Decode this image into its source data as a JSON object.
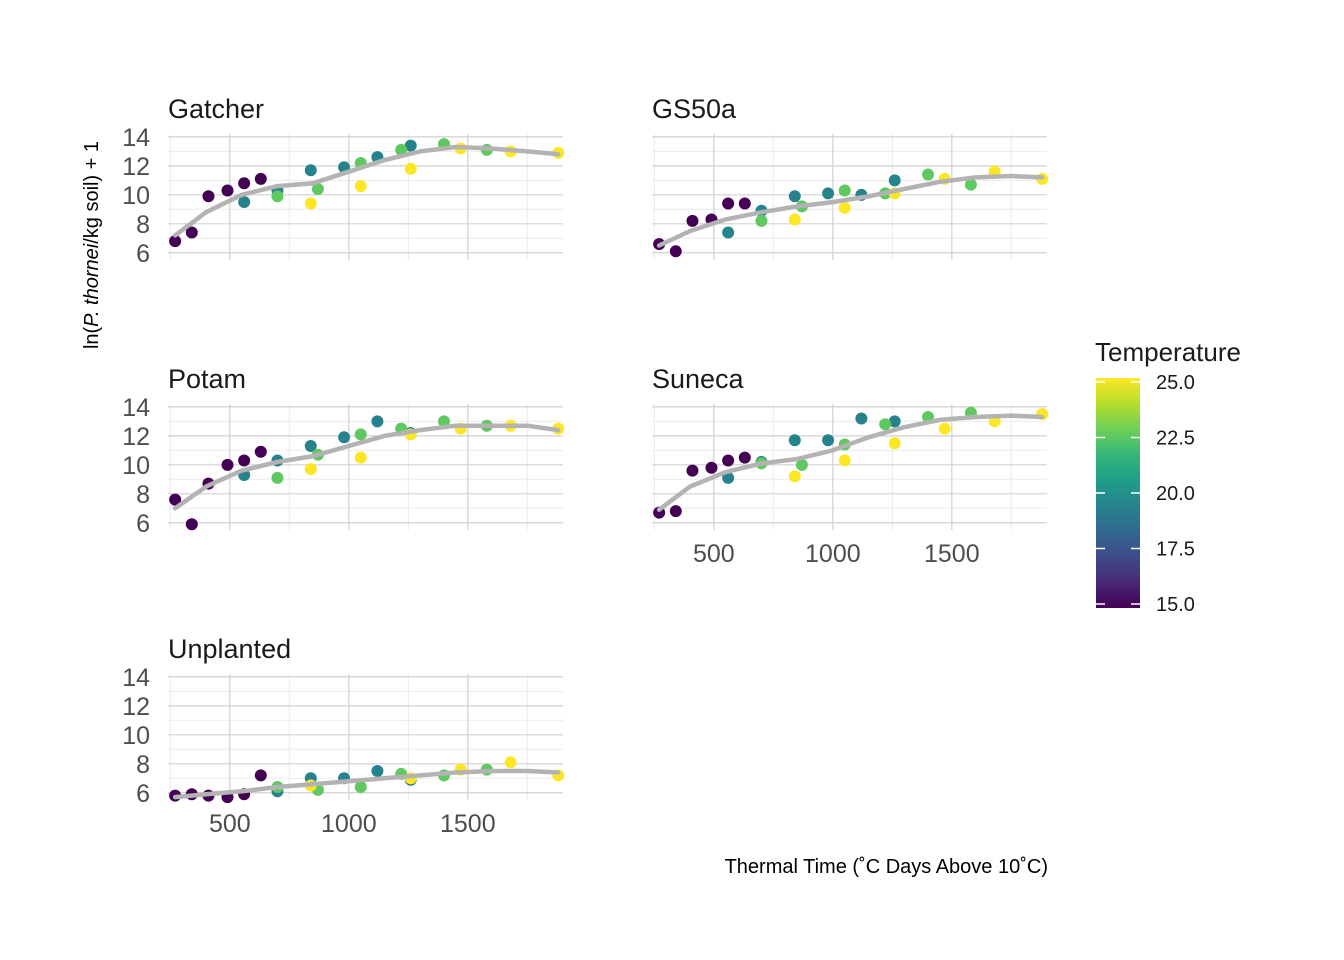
{
  "chart_data": {
    "type": "scatter",
    "xlabel": "Thermal Time (˚C Days Above 10˚C)",
    "ylabel_parts": [
      "ln(",
      "P. thornei",
      "/kg soil) + 1"
    ],
    "xlim": [
      240,
      1900
    ],
    "ylim": [
      5.5,
      14.2
    ],
    "x_ticks": [
      500,
      1000,
      1500
    ],
    "y_ticks": [
      6,
      8,
      10,
      12,
      14
    ],
    "grid": true,
    "legend": {
      "title": "Temperature",
      "placement": "right",
      "min": 15.0,
      "max": 25.0,
      "ticks": [
        "15.0",
        "17.5",
        "20.0",
        "22.5",
        "25.0"
      ],
      "colors": [
        "#440154",
        "#482878",
        "#3e4a89",
        "#31688e",
        "#26828e",
        "#1f9e89",
        "#35b779",
        "#6ece58",
        "#b5de2b",
        "#fde725"
      ]
    },
    "smooth_color": "#b3b3b3",
    "panels": [
      {
        "name": "Gatcher",
        "points": [
          [
            270,
            6.8,
            15
          ],
          [
            340,
            7.4,
            15
          ],
          [
            410,
            9.9,
            15
          ],
          [
            490,
            10.3,
            15
          ],
          [
            560,
            10.8,
            15
          ],
          [
            630,
            11.1,
            15
          ],
          [
            560,
            9.5,
            19.5
          ],
          [
            700,
            10.3,
            19.5
          ],
          [
            840,
            11.7,
            19.5
          ],
          [
            980,
            11.9,
            19.5
          ],
          [
            1120,
            12.6,
            19.5
          ],
          [
            1260,
            13.4,
            19.5
          ],
          [
            700,
            9.9,
            22.5
          ],
          [
            870,
            10.4,
            22.5
          ],
          [
            1050,
            12.2,
            22.5
          ],
          [
            1220,
            13.1,
            22.5
          ],
          [
            1400,
            13.5,
            22.5
          ],
          [
            1580,
            13.1,
            22.5
          ],
          [
            840,
            9.4,
            25
          ],
          [
            1050,
            10.6,
            25
          ],
          [
            1260,
            11.8,
            25
          ],
          [
            1470,
            13.2,
            25
          ],
          [
            1680,
            13.0,
            25
          ],
          [
            1880,
            12.9,
            25
          ]
        ],
        "smooth": [
          [
            270,
            7.2
          ],
          [
            400,
            8.8
          ],
          [
            550,
            10.0
          ],
          [
            700,
            10.6
          ],
          [
            850,
            10.8
          ],
          [
            1000,
            11.6
          ],
          [
            1150,
            12.4
          ],
          [
            1300,
            13.0
          ],
          [
            1450,
            13.3
          ],
          [
            1600,
            13.2
          ],
          [
            1750,
            13.0
          ],
          [
            1880,
            12.8
          ]
        ]
      },
      {
        "name": "GS50a",
        "points": [
          [
            270,
            6.6,
            15
          ],
          [
            340,
            6.1,
            15
          ],
          [
            410,
            8.2,
            15
          ],
          [
            490,
            8.3,
            15
          ],
          [
            560,
            9.4,
            15
          ],
          [
            630,
            9.4,
            15
          ],
          [
            560,
            7.4,
            19.5
          ],
          [
            700,
            8.9,
            19.5
          ],
          [
            840,
            9.9,
            19.5
          ],
          [
            980,
            10.1,
            19.5
          ],
          [
            1120,
            10.0,
            19.5
          ],
          [
            1260,
            11.0,
            19.5
          ],
          [
            700,
            8.2,
            22.5
          ],
          [
            870,
            9.2,
            22.5
          ],
          [
            1050,
            10.3,
            22.5
          ],
          [
            1220,
            10.1,
            22.5
          ],
          [
            1400,
            11.4,
            22.5
          ],
          [
            1580,
            10.7,
            22.5
          ],
          [
            840,
            8.3,
            25
          ],
          [
            1050,
            9.1,
            25
          ],
          [
            1260,
            10.1,
            25
          ],
          [
            1470,
            11.1,
            25
          ],
          [
            1680,
            11.6,
            25
          ],
          [
            1880,
            11.1,
            25
          ]
        ],
        "smooth": [
          [
            270,
            6.5
          ],
          [
            400,
            7.5
          ],
          [
            550,
            8.3
          ],
          [
            700,
            8.8
          ],
          [
            850,
            9.2
          ],
          [
            1000,
            9.5
          ],
          [
            1150,
            9.9
          ],
          [
            1300,
            10.4
          ],
          [
            1450,
            10.9
          ],
          [
            1600,
            11.2
          ],
          [
            1750,
            11.3
          ],
          [
            1880,
            11.2
          ]
        ]
      },
      {
        "name": "Potam",
        "points": [
          [
            270,
            7.6,
            15
          ],
          [
            340,
            5.9,
            15
          ],
          [
            410,
            8.7,
            15
          ],
          [
            490,
            10.0,
            15
          ],
          [
            560,
            10.3,
            15
          ],
          [
            630,
            10.9,
            15
          ],
          [
            560,
            9.3,
            19.5
          ],
          [
            700,
            10.3,
            19.5
          ],
          [
            840,
            11.3,
            19.5
          ],
          [
            980,
            11.9,
            19.5
          ],
          [
            1120,
            13.0,
            19.5
          ],
          [
            1260,
            12.2,
            19.5
          ],
          [
            700,
            9.1,
            22.5
          ],
          [
            870,
            10.7,
            22.5
          ],
          [
            1050,
            12.1,
            22.5
          ],
          [
            1220,
            12.5,
            22.5
          ],
          [
            1400,
            13.0,
            22.5
          ],
          [
            1580,
            12.7,
            22.5
          ],
          [
            840,
            9.7,
            25
          ],
          [
            1050,
            10.5,
            25
          ],
          [
            1260,
            12.1,
            25
          ],
          [
            1470,
            12.5,
            25
          ],
          [
            1680,
            12.7,
            25
          ],
          [
            1880,
            12.5,
            25
          ]
        ],
        "smooth": [
          [
            270,
            7.0
          ],
          [
            400,
            8.5
          ],
          [
            550,
            9.6
          ],
          [
            700,
            10.2
          ],
          [
            850,
            10.6
          ],
          [
            1000,
            11.3
          ],
          [
            1150,
            12.0
          ],
          [
            1300,
            12.4
          ],
          [
            1450,
            12.7
          ],
          [
            1600,
            12.7
          ],
          [
            1750,
            12.7
          ],
          [
            1880,
            12.4
          ]
        ]
      },
      {
        "name": "Suneca",
        "points": [
          [
            270,
            6.7,
            15
          ],
          [
            340,
            6.8,
            15
          ],
          [
            410,
            9.6,
            15
          ],
          [
            490,
            9.8,
            15
          ],
          [
            560,
            10.3,
            15
          ],
          [
            630,
            10.5,
            15
          ],
          [
            560,
            9.1,
            19.5
          ],
          [
            700,
            10.2,
            19.5
          ],
          [
            840,
            11.7,
            19.5
          ],
          [
            980,
            11.7,
            19.5
          ],
          [
            1120,
            13.2,
            19.5
          ],
          [
            1260,
            13.0,
            19.5
          ],
          [
            700,
            10.1,
            22.5
          ],
          [
            870,
            10.0,
            22.5
          ],
          [
            1050,
            11.4,
            22.5
          ],
          [
            1220,
            12.8,
            22.5
          ],
          [
            1400,
            13.3,
            22.5
          ],
          [
            1580,
            13.6,
            22.5
          ],
          [
            840,
            9.2,
            25
          ],
          [
            1050,
            10.3,
            25
          ],
          [
            1260,
            11.5,
            25
          ],
          [
            1470,
            12.5,
            25
          ],
          [
            1680,
            13.0,
            25
          ],
          [
            1880,
            13.5,
            25
          ]
        ],
        "smooth": [
          [
            270,
            6.9
          ],
          [
            400,
            8.5
          ],
          [
            550,
            9.5
          ],
          [
            700,
            10.1
          ],
          [
            850,
            10.4
          ],
          [
            1000,
            11.0
          ],
          [
            1150,
            11.9
          ],
          [
            1300,
            12.6
          ],
          [
            1450,
            13.1
          ],
          [
            1600,
            13.3
          ],
          [
            1750,
            13.4
          ],
          [
            1880,
            13.3
          ]
        ]
      },
      {
        "name": "Unplanted",
        "points": [
          [
            270,
            5.8,
            15
          ],
          [
            340,
            5.9,
            15
          ],
          [
            410,
            5.8,
            15
          ],
          [
            490,
            5.7,
            15
          ],
          [
            560,
            5.9,
            15
          ],
          [
            630,
            7.2,
            15
          ],
          [
            700,
            6.1,
            19.5
          ],
          [
            840,
            7.0,
            19.5
          ],
          [
            980,
            7.0,
            19.5
          ],
          [
            1120,
            7.5,
            19.5
          ],
          [
            1260,
            6.9,
            19.5
          ],
          [
            700,
            6.4,
            22.5
          ],
          [
            870,
            6.2,
            22.5
          ],
          [
            1050,
            6.4,
            22.5
          ],
          [
            1220,
            7.3,
            22.5
          ],
          [
            1400,
            7.2,
            22.5
          ],
          [
            1580,
            7.6,
            22.5
          ],
          [
            840,
            6.5,
            25
          ],
          [
            1260,
            7.0,
            25
          ],
          [
            1470,
            7.6,
            25
          ],
          [
            1680,
            8.1,
            25
          ],
          [
            1880,
            7.2,
            25
          ]
        ],
        "smooth": [
          [
            270,
            5.7
          ],
          [
            400,
            5.9
          ],
          [
            550,
            6.1
          ],
          [
            700,
            6.4
          ],
          [
            850,
            6.6
          ],
          [
            1000,
            6.8
          ],
          [
            1150,
            7.0
          ],
          [
            1300,
            7.2
          ],
          [
            1450,
            7.4
          ],
          [
            1600,
            7.5
          ],
          [
            1750,
            7.5
          ],
          [
            1880,
            7.4
          ]
        ]
      }
    ]
  }
}
